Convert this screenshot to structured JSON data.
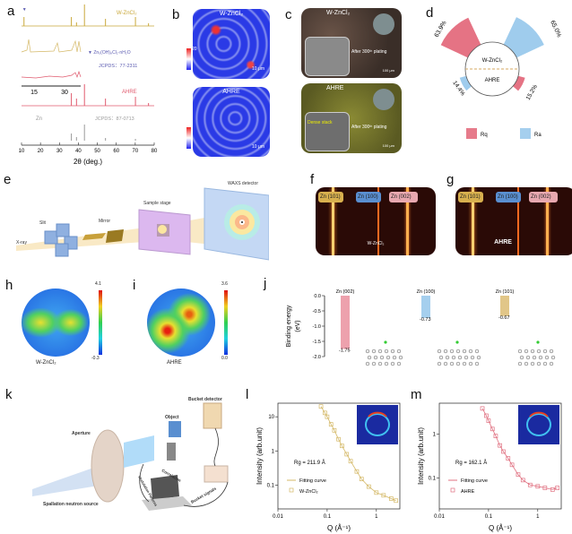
{
  "panels": {
    "a": {
      "label": "a"
    },
    "b": {
      "label": "b"
    },
    "c": {
      "label": "c"
    },
    "d": {
      "label": "d"
    },
    "e": {
      "label": "e"
    },
    "f": {
      "label": "f"
    },
    "g": {
      "label": "g"
    },
    "h": {
      "label": "h"
    },
    "i": {
      "label": "i"
    },
    "j": {
      "label": "j"
    },
    "k": {
      "label": "k"
    },
    "l": {
      "label": "l"
    },
    "m": {
      "label": "m"
    }
  },
  "chart_data": [
    {
      "id": "a",
      "type": "line",
      "title": "XRD patterns",
      "xlabel": "2θ (deg.)",
      "xlim": [
        10,
        80
      ],
      "xticks": [
        "10",
        "20",
        "30",
        "40",
        "50",
        "60",
        "70",
        "80"
      ],
      "series": [
        {
          "name": "W-ZnCl2",
          "display": "W-ZnCl₂",
          "color": "#c9a83a",
          "peaks": [
            11.3,
            36.3,
            39.0,
            43.2,
            54.3,
            70.1,
            77.0
          ]
        },
        {
          "name": "AHRE",
          "color": "#e05a6e",
          "peaks": [
            36.3,
            39.0,
            43.2,
            54.3,
            70.1,
            77.0
          ]
        },
        {
          "name": "Zn reference",
          "display": "Zn",
          "color": "#9a9a9a",
          "peaks": [
            36.3,
            39.0,
            43.2,
            54.3,
            70.1
          ]
        }
      ],
      "inset": {
        "xticks": [
          "15",
          "30"
        ],
        "marker_legend": "Zn₅(OH)₈Cl₂·nH₂O",
        "jcpds_hydroxide": "JCPDS：77-2311"
      },
      "zn_jcpds": "JCPDS：87-0713",
      "marker_color": "#5a5ab0"
    },
    {
      "id": "d",
      "type": "pie",
      "title": "Roughness comparison",
      "center_top": "W-ZnCl₂",
      "center_bottom": "AHRE",
      "series": [
        {
          "name": "Rq",
          "color": "#e05a6e",
          "values": {
            "W-ZnCl2": 63.9,
            "AHRE": 15.2
          }
        },
        {
          "name": "Ra",
          "color": "#8ec3ea",
          "values": {
            "W-ZnCl2": 65.0,
            "AHRE": 14.4
          }
        }
      ],
      "labels": {
        "rq_top": "63.9%",
        "ra_top": "65.0%",
        "ra_bottom": "14.4%",
        "rq_bottom": "15.2%"
      },
      "legend": [
        "Rq",
        "Ra"
      ],
      "legend_position": "bottom"
    },
    {
      "id": "j",
      "type": "bar",
      "ylabel": "Binding energy (eV)",
      "ylim": [
        -2.0,
        0.0
      ],
      "yticks": [
        "0.0",
        "-0.5",
        "-1.0",
        "-1.5",
        "-2.0"
      ],
      "categories": [
        "Zn (002)",
        "Zn (100)",
        "Zn (101)"
      ],
      "values": [
        -1.75,
        -0.73,
        -0.67
      ],
      "value_labels": [
        "-1.75",
        "-0.73",
        "-0.67"
      ],
      "colors": [
        "#e88a98",
        "#8ec3ea",
        "#d9b86a"
      ]
    },
    {
      "id": "l",
      "type": "scatter",
      "xlabel": "Q (Å⁻¹)",
      "ylabel": "Intensity (arb.unit)",
      "xscale": "log",
      "yscale": "log",
      "xlim": [
        0.01,
        3
      ],
      "ylim": [
        0.02,
        25
      ],
      "xticks": [
        "0.01",
        "0.1",
        "1"
      ],
      "yticks": [
        "10",
        "1",
        "0.1"
      ],
      "annotation": "Rg = 211.9 Å",
      "legend": [
        "Fitting curve",
        "W-ZnCl₂"
      ],
      "color": "#d4b866",
      "series": [
        {
          "name": "W-ZnCl2",
          "x": [
            0.075,
            0.09,
            0.1,
            0.12,
            0.14,
            0.17,
            0.2,
            0.25,
            0.3,
            0.4,
            0.5,
            0.7,
            1.0,
            1.4,
            2.0,
            2.5
          ],
          "y": [
            20,
            13,
            10,
            6,
            4,
            2.2,
            1.4,
            0.8,
            0.5,
            0.25,
            0.15,
            0.09,
            0.06,
            0.05,
            0.04,
            0.035
          ]
        }
      ]
    },
    {
      "id": "m",
      "type": "scatter",
      "xlabel": "Q (Å⁻¹)",
      "ylabel": "Intensity (arb.unit)",
      "xscale": "log",
      "yscale": "log",
      "xlim": [
        0.01,
        3
      ],
      "ylim": [
        0.02,
        5
      ],
      "xticks": [
        "0.01",
        "0.1",
        "1"
      ],
      "yticks": [
        "1",
        "0.1"
      ],
      "annotation": "Rg = 162.1 Å",
      "legend": [
        "Fitting curve",
        "AHRE"
      ],
      "color": "#e07080",
      "series": [
        {
          "name": "AHRE",
          "x": [
            0.075,
            0.09,
            0.1,
            0.12,
            0.14,
            0.17,
            0.2,
            0.25,
            0.3,
            0.4,
            0.5,
            0.7,
            1.0,
            1.4,
            2.0,
            2.5
          ],
          "y": [
            3.8,
            2.6,
            2.0,
            1.3,
            0.9,
            0.55,
            0.4,
            0.28,
            0.2,
            0.12,
            0.09,
            0.07,
            0.065,
            0.06,
            0.055,
            0.06
          ]
        }
      ]
    }
  ],
  "b": {
    "top_label": "W-ZnCl₂",
    "bottom_label": "AHRE",
    "scale_top": "20",
    "scale_bottom": "0",
    "scalebar": "10 μm"
  },
  "c": {
    "top_label": "W-ZnCl₂",
    "bottom_label": "AHRE",
    "after_plating": "After 300ᵗʰ plating",
    "scalebar": "100 μm",
    "inset_scalebar": "10 μm",
    "dense_stack": "Dense stack"
  },
  "e": {
    "xray": "X-ray",
    "slit": "Slit",
    "mirror": "Mirror",
    "sample_stage": "Sample stage",
    "detector": "WAXS detector"
  },
  "f": {
    "tags": [
      "Zn (101)",
      "Zn (100)",
      "Zn (002)"
    ],
    "caption": "W-ZnCl₂"
  },
  "g": {
    "tags": [
      "Zn (101)",
      "Zn (100)",
      "Zn (002)"
    ],
    "caption": "AHRE"
  },
  "h": {
    "caption": "W-ZnCl₂",
    "cmax": "4.1",
    "cmin": "-0.3"
  },
  "i": {
    "caption": "AHRE",
    "cmax": "3.6",
    "cmin": "0.0"
  },
  "k": {
    "aperture": "Aperture",
    "object": "Object",
    "bucket_detector": "Bucket detector",
    "source": "Spallation neutron source",
    "correlation": "Correlation",
    "modulation": "Modulation Patterns",
    "bucket_signals": "Bucket signals"
  }
}
